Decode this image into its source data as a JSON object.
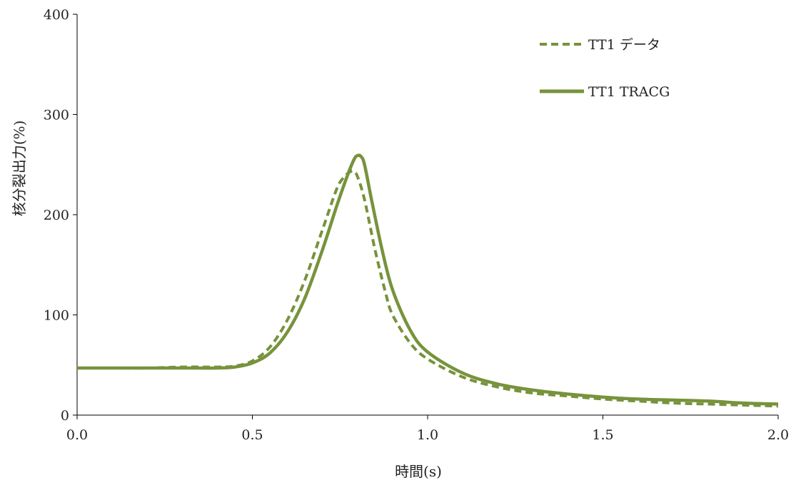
{
  "chart_data": {
    "type": "line",
    "xlabel": "時間(s)",
    "ylabel": "核分裂出力(%)",
    "xlim": [
      0.0,
      2.0
    ],
    "ylim": [
      0,
      400
    ],
    "x_ticks": [
      0.0,
      0.5,
      1.0,
      1.5,
      2.0
    ],
    "x_tick_labels": [
      "0.0",
      "0.5",
      "1.0",
      "1.5",
      "2.0"
    ],
    "y_ticks": [
      0,
      100,
      200,
      300,
      400
    ],
    "y_tick_labels": [
      "0",
      "100",
      "200",
      "300",
      "400"
    ],
    "grid": false,
    "legend_position": "top-right",
    "series": [
      {
        "name": "TT1 データ",
        "style": "dashed",
        "color": "#77933c",
        "x": [
          0.0,
          0.1,
          0.2,
          0.3,
          0.4,
          0.45,
          0.5,
          0.55,
          0.6,
          0.65,
          0.7,
          0.74,
          0.76,
          0.78,
          0.79,
          0.8,
          0.82,
          0.85,
          0.88,
          0.9,
          0.95,
          1.0,
          1.1,
          1.2,
          1.3,
          1.4,
          1.5,
          1.6,
          1.7,
          1.8,
          1.9,
          2.0
        ],
        "y": [
          47,
          47,
          47,
          48,
          48,
          49,
          54,
          68,
          95,
          135,
          185,
          225,
          237,
          243,
          243,
          238,
          215,
          165,
          122,
          100,
          72,
          56,
          38,
          28,
          22,
          19,
          16,
          14,
          12,
          11,
          10,
          9
        ]
      },
      {
        "name": "TT1 TRACG",
        "style": "solid",
        "color": "#77933c",
        "x": [
          0.0,
          0.1,
          0.2,
          0.3,
          0.4,
          0.45,
          0.5,
          0.55,
          0.6,
          0.65,
          0.7,
          0.74,
          0.77,
          0.79,
          0.8,
          0.81,
          0.82,
          0.84,
          0.87,
          0.9,
          0.95,
          1.0,
          1.1,
          1.2,
          1.3,
          1.4,
          1.5,
          1.6,
          1.7,
          1.8,
          1.9,
          2.0
        ],
        "y": [
          47,
          47,
          47,
          47,
          47,
          48,
          52,
          62,
          83,
          117,
          165,
          208,
          238,
          255,
          259,
          258,
          250,
          215,
          165,
          125,
          85,
          63,
          42,
          31,
          25,
          21,
          18,
          16,
          15,
          14,
          12,
          11
        ]
      }
    ]
  }
}
